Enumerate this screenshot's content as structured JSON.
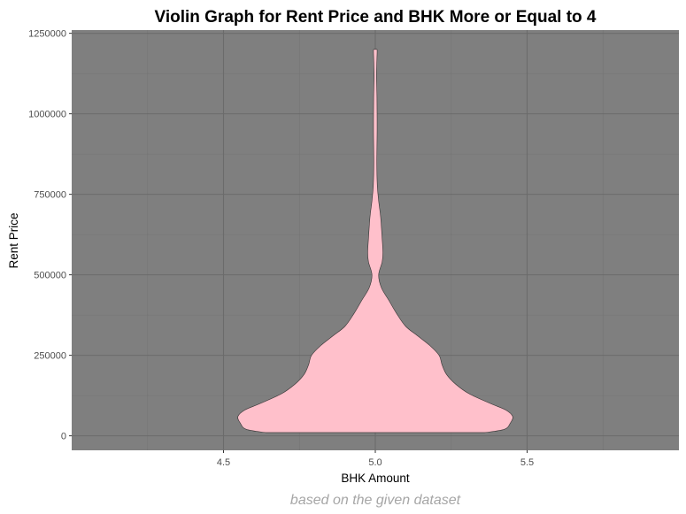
{
  "chart_data": {
    "type": "violin",
    "title": "Violin Graph for Rent Price and BHK More or Equal to 4",
    "xlabel": "BHK Amount",
    "ylabel": "Rent Price",
    "caption": "based on the given dataset",
    "xlim": [
      4.0,
      6.0
    ],
    "ylim": [
      -45000,
      1260000
    ],
    "x_ticks": [
      {
        "value": 4.5,
        "label": "4.5"
      },
      {
        "value": 5.0,
        "label": "5.0"
      },
      {
        "value": 5.5,
        "label": "5.5"
      }
    ],
    "y_ticks": [
      {
        "value": 0,
        "label": "0"
      },
      {
        "value": 250000,
        "label": "250000"
      },
      {
        "value": 500000,
        "label": "500000"
      },
      {
        "value": 750000,
        "label": "750000"
      },
      {
        "value": 1000000,
        "label": "1000000"
      },
      {
        "value": 1250000,
        "label": "1250000"
      }
    ],
    "grid": true,
    "colors": {
      "panel_background": "#7f7f7f",
      "major_grid": "#6b6b6b",
      "minor_grid": "#757575",
      "violin_fill": "#ffc0cb",
      "violin_outline": "#333333"
    },
    "violins": [
      {
        "x": 5.0,
        "name": "",
        "y_range": [
          10000,
          1200000
        ],
        "half_width": [
          [
            10000,
            0.72
          ],
          [
            20000,
            0.85
          ],
          [
            40000,
            0.89
          ],
          [
            60000,
            0.905
          ],
          [
            80000,
            0.86
          ],
          [
            100000,
            0.76
          ],
          [
            130000,
            0.62
          ],
          [
            160000,
            0.53
          ],
          [
            190000,
            0.47
          ],
          [
            220000,
            0.44
          ],
          [
            250000,
            0.42
          ],
          [
            280000,
            0.36
          ],
          [
            310000,
            0.28
          ],
          [
            340000,
            0.2
          ],
          [
            380000,
            0.14
          ],
          [
            420000,
            0.09
          ],
          [
            460000,
            0.04
          ],
          [
            500000,
            0.022
          ],
          [
            540000,
            0.045
          ],
          [
            570000,
            0.05
          ],
          [
            620000,
            0.044
          ],
          [
            680000,
            0.035
          ],
          [
            730000,
            0.022
          ],
          [
            780000,
            0.013
          ],
          [
            850000,
            0.01
          ],
          [
            950000,
            0.012
          ],
          [
            1050000,
            0.011
          ],
          [
            1120000,
            0.008
          ],
          [
            1190000,
            0.012
          ],
          [
            1200000,
            0.011
          ]
        ]
      }
    ]
  }
}
